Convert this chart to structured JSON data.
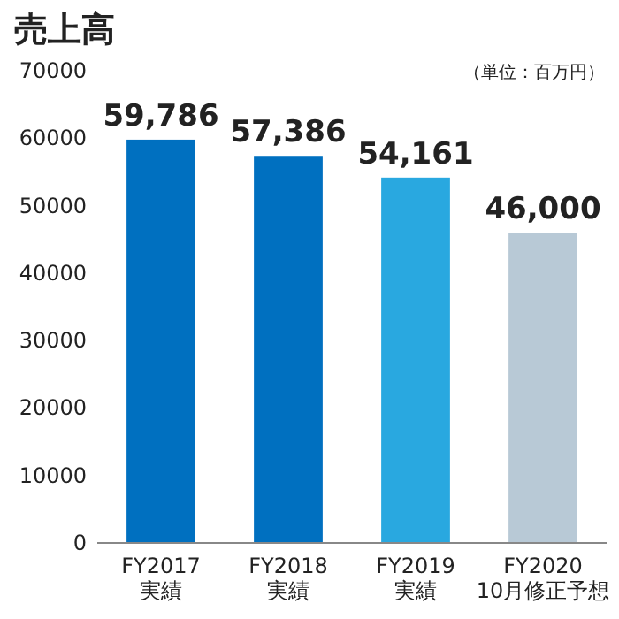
{
  "chart_data": {
    "type": "bar",
    "title": "売上高",
    "annotations": [
      "（単位：百万円）"
    ],
    "categories": [
      "FY2017\n実績",
      "FY2018\n実績",
      "FY2019\n実績",
      "FY2020\n10月修正予想"
    ],
    "values": [
      59786,
      57386,
      54161,
      46000
    ],
    "value_labels": [
      "59,786",
      "57,386",
      "54,161",
      "46,000"
    ],
    "colors": [
      "#0070c0",
      "#0070c0",
      "#29a8e0",
      "#b8c9d6"
    ],
    "ylim": [
      0,
      70000
    ],
    "yticks": [
      0,
      10000,
      20000,
      30000,
      40000,
      50000,
      60000,
      70000
    ],
    "grid": false
  }
}
